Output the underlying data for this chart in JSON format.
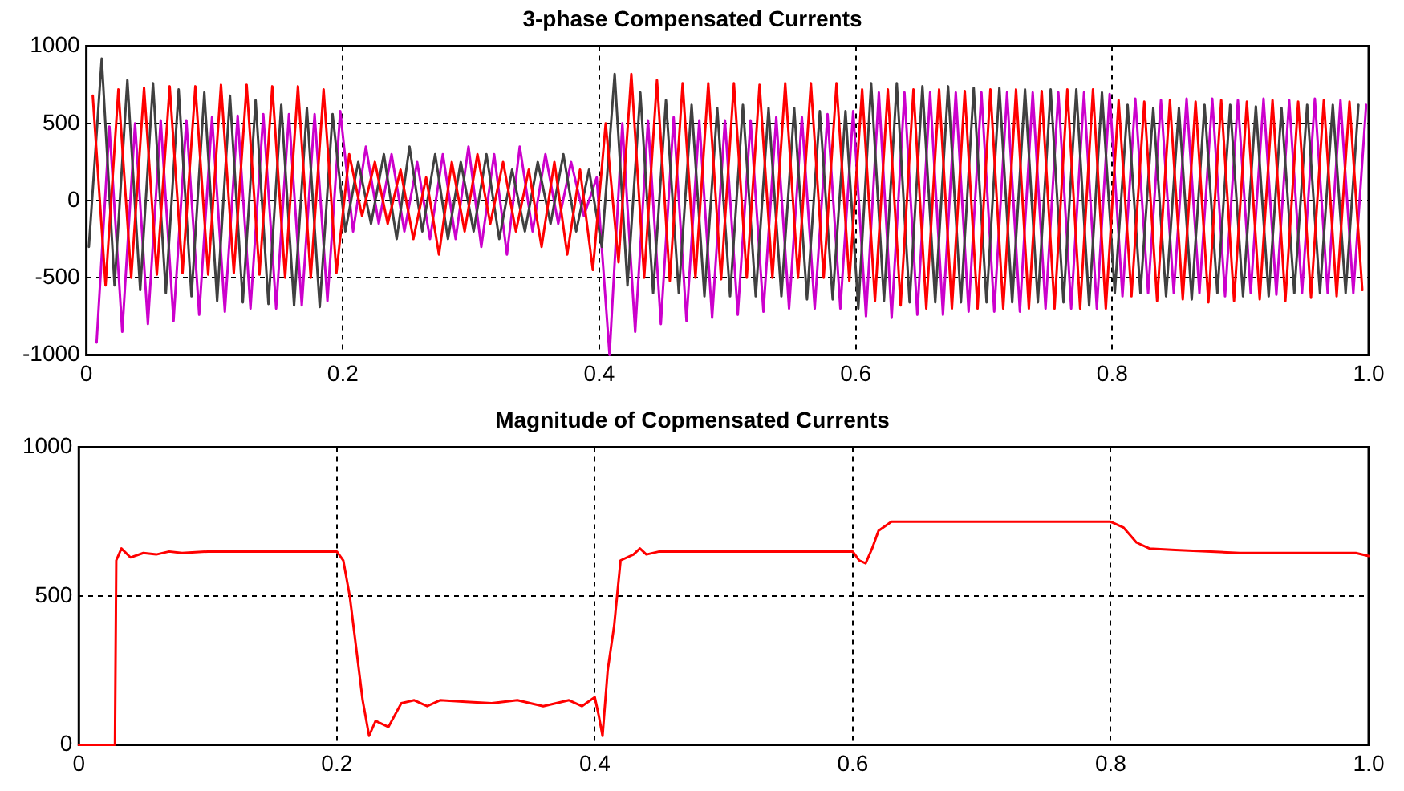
{
  "chart_data": [
    {
      "type": "line",
      "title": "3-phase Compensated Currents",
      "xlim": [
        0,
        1
      ],
      "ylim": [
        -1000,
        1000
      ],
      "xticks": [
        0,
        0.2,
        0.4,
        0.6,
        0.8,
        {
          "value": 1,
          "label": "1.0"
        }
      ],
      "yticks": [
        -1000,
        -500,
        0,
        500,
        1000
      ],
      "grid": true,
      "legend": false,
      "marker": "none",
      "line_style": "solid",
      "series": [
        {
          "color": "#ff0000",
          "x": [
            0.005,
            0.015,
            0.025,
            0.035,
            0.045,
            0.055,
            0.065,
            0.075,
            0.085,
            0.095,
            0.105,
            0.115,
            0.125,
            0.135,
            0.145,
            0.155,
            0.165,
            0.175,
            0.185,
            0.195,
            0.205,
            0.215,
            0.225,
            0.235,
            0.245,
            0.255,
            0.265,
            0.275,
            0.285,
            0.295,
            0.305,
            0.315,
            0.325,
            0.335,
            0.345,
            0.355,
            0.365,
            0.375,
            0.385,
            0.395,
            0.405,
            0.415,
            0.425,
            0.435,
            0.445,
            0.455,
            0.465,
            0.475,
            0.485,
            0.495,
            0.505,
            0.515,
            0.525,
            0.535,
            0.545,
            0.555,
            0.565,
            0.575,
            0.585,
            0.595,
            0.605,
            0.615,
            0.625,
            0.635,
            0.645,
            0.655,
            0.665,
            0.675,
            0.685,
            0.695,
            0.705,
            0.715,
            0.725,
            0.735,
            0.745,
            0.755,
            0.765,
            0.775,
            0.785,
            0.795,
            0.805,
            0.815,
            0.825,
            0.835,
            0.845,
            0.855,
            0.865,
            0.875,
            0.885,
            0.895,
            0.905,
            0.915,
            0.925,
            0.935,
            0.945,
            0.955,
            0.965,
            0.975,
            0.985,
            0.995
          ],
          "values": [
            680,
            -550,
            720,
            -500,
            730,
            -480,
            740,
            -470,
            740,
            -480,
            750,
            -470,
            750,
            -480,
            740,
            -500,
            740,
            -500,
            720,
            -470,
            300,
            -100,
            250,
            -150,
            200,
            -250,
            150,
            -350,
            250,
            -200,
            300,
            -150,
            250,
            -200,
            200,
            -300,
            250,
            -350,
            200,
            -450,
            500,
            -400,
            820,
            -500,
            780,
            -520,
            760,
            -500,
            760,
            -510,
            760,
            -500,
            750,
            -500,
            760,
            -500,
            760,
            -500,
            760,
            -520,
            720,
            -650,
            720,
            -680,
            720,
            -700,
            720,
            -700,
            710,
            -700,
            720,
            -700,
            720,
            -700,
            710,
            -700,
            720,
            -700,
            720,
            -700,
            650,
            -620,
            640,
            -650,
            650,
            -640,
            640,
            -660,
            650,
            -650,
            640,
            -640,
            650,
            -650,
            640,
            -630,
            650,
            -620,
            640,
            -580
          ]
        },
        {
          "color": "#404040",
          "x": [
            0.002,
            0.012,
            0.022,
            0.032,
            0.042,
            0.052,
            0.062,
            0.072,
            0.082,
            0.092,
            0.102,
            0.112,
            0.122,
            0.132,
            0.142,
            0.152,
            0.162,
            0.172,
            0.182,
            0.192,
            0.202,
            0.212,
            0.222,
            0.232,
            0.242,
            0.252,
            0.262,
            0.272,
            0.282,
            0.292,
            0.302,
            0.312,
            0.322,
            0.332,
            0.342,
            0.352,
            0.362,
            0.372,
            0.382,
            0.392,
            0.402,
            0.412,
            0.422,
            0.432,
            0.442,
            0.452,
            0.462,
            0.472,
            0.482,
            0.492,
            0.502,
            0.512,
            0.522,
            0.532,
            0.542,
            0.552,
            0.562,
            0.572,
            0.582,
            0.592,
            0.602,
            0.612,
            0.622,
            0.632,
            0.642,
            0.652,
            0.662,
            0.672,
            0.682,
            0.692,
            0.702,
            0.712,
            0.722,
            0.732,
            0.742,
            0.752,
            0.762,
            0.772,
            0.782,
            0.792,
            0.802,
            0.812,
            0.822,
            0.832,
            0.842,
            0.852,
            0.862,
            0.872,
            0.882,
            0.892,
            0.902,
            0.912,
            0.922,
            0.932,
            0.942,
            0.952,
            0.962,
            0.972,
            0.982,
            0.992
          ],
          "values": [
            -300,
            920,
            -550,
            780,
            -580,
            760,
            -600,
            720,
            -620,
            700,
            -650,
            680,
            -660,
            650,
            -670,
            620,
            -680,
            600,
            -690,
            560,
            -200,
            250,
            -150,
            300,
            -250,
            350,
            -200,
            300,
            -250,
            250,
            -200,
            300,
            -250,
            200,
            -200,
            250,
            -150,
            300,
            -200,
            200,
            -300,
            820,
            -550,
            700,
            -600,
            650,
            -600,
            620,
            -620,
            600,
            -620,
            620,
            -620,
            600,
            -620,
            600,
            -640,
            580,
            -640,
            580,
            -700,
            760,
            -650,
            760,
            -660,
            740,
            -660,
            740,
            -660,
            730,
            -660,
            730,
            -660,
            720,
            -660,
            720,
            -660,
            720,
            -680,
            700,
            -600,
            620,
            -600,
            600,
            -620,
            600,
            -640,
            620,
            -600,
            620,
            -620,
            610,
            -620,
            600,
            -600,
            620,
            -600,
            620,
            -600,
            620
          ]
        },
        {
          "color": "#cc00cc",
          "x": [
            0.008,
            0.018,
            0.028,
            0.038,
            0.048,
            0.058,
            0.068,
            0.078,
            0.088,
            0.098,
            0.108,
            0.118,
            0.128,
            0.138,
            0.148,
            0.158,
            0.168,
            0.178,
            0.188,
            0.198,
            0.208,
            0.218,
            0.228,
            0.238,
            0.248,
            0.258,
            0.268,
            0.278,
            0.288,
            0.298,
            0.308,
            0.318,
            0.328,
            0.338,
            0.348,
            0.358,
            0.368,
            0.378,
            0.388,
            0.398,
            0.408,
            0.418,
            0.428,
            0.438,
            0.448,
            0.458,
            0.468,
            0.478,
            0.488,
            0.498,
            0.508,
            0.518,
            0.528,
            0.538,
            0.548,
            0.558,
            0.568,
            0.578,
            0.588,
            0.598,
            0.608,
            0.618,
            0.628,
            0.638,
            0.648,
            0.658,
            0.668,
            0.678,
            0.688,
            0.698,
            0.708,
            0.718,
            0.728,
            0.738,
            0.748,
            0.758,
            0.768,
            0.778,
            0.788,
            0.798,
            0.808,
            0.818,
            0.828,
            0.838,
            0.848,
            0.858,
            0.868,
            0.878,
            0.888,
            0.898,
            0.908,
            0.918,
            0.928,
            0.938,
            0.948,
            0.958,
            0.968,
            0.978,
            0.988,
            0.998
          ],
          "values": [
            -920,
            480,
            -850,
            500,
            -800,
            520,
            -780,
            520,
            -740,
            540,
            -720,
            550,
            -700,
            560,
            -700,
            560,
            -680,
            560,
            -650,
            580,
            -200,
            350,
            -150,
            300,
            -200,
            250,
            -250,
            300,
            -250,
            350,
            -300,
            300,
            -350,
            350,
            -200,
            300,
            -150,
            250,
            -100,
            150,
            -1000,
            500,
            -850,
            520,
            -800,
            540,
            -780,
            520,
            -760,
            520,
            -740,
            520,
            -720,
            540,
            -700,
            540,
            -700,
            560,
            -700,
            580,
            -750,
            700,
            -760,
            700,
            -740,
            700,
            -740,
            700,
            -720,
            700,
            -720,
            700,
            -720,
            700,
            -700,
            700,
            -700,
            700,
            -700,
            690,
            -620,
            660,
            -600,
            650,
            -600,
            660,
            -600,
            660,
            -620,
            650,
            -600,
            660,
            -610,
            650,
            -600,
            660,
            -600,
            650,
            -600,
            620
          ]
        }
      ]
    },
    {
      "type": "line",
      "title": "Magnitude of Copmensated Currents",
      "xlim": [
        0,
        1
      ],
      "ylim": [
        0,
        1000
      ],
      "xticks": [
        0,
        0.2,
        0.4,
        0.6,
        0.8,
        {
          "value": 1,
          "label": "1.0"
        }
      ],
      "yticks": [
        0,
        500,
        1000
      ],
      "grid": true,
      "legend": false,
      "marker": "none",
      "line_style": "solid",
      "series": [
        {
          "color": "#ff0000",
          "x": [
            0,
            0.028,
            0.029,
            0.033,
            0.04,
            0.05,
            0.06,
            0.07,
            0.08,
            0.1,
            0.15,
            0.2,
            0.205,
            0.21,
            0.22,
            0.225,
            0.23,
            0.24,
            0.25,
            0.26,
            0.27,
            0.28,
            0.3,
            0.32,
            0.34,
            0.36,
            0.38,
            0.39,
            0.4,
            0.403,
            0.406,
            0.41,
            0.415,
            0.42,
            0.43,
            0.435,
            0.44,
            0.45,
            0.5,
            0.55,
            0.6,
            0.605,
            0.61,
            0.615,
            0.62,
            0.63,
            0.7,
            0.8,
            0.81,
            0.82,
            0.83,
            0.85,
            0.9,
            0.95,
            0.99,
            1
          ],
          "values": [
            0,
            0,
            620,
            660,
            630,
            645,
            640,
            650,
            645,
            650,
            650,
            650,
            620,
            500,
            150,
            30,
            80,
            60,
            140,
            150,
            130,
            150,
            145,
            140,
            150,
            130,
            150,
            130,
            160,
            100,
            30,
            250,
            400,
            620,
            640,
            660,
            640,
            650,
            650,
            650,
            650,
            620,
            610,
            660,
            720,
            750,
            750,
            750,
            730,
            680,
            660,
            655,
            645,
            645,
            645,
            635
          ]
        }
      ]
    }
  ]
}
